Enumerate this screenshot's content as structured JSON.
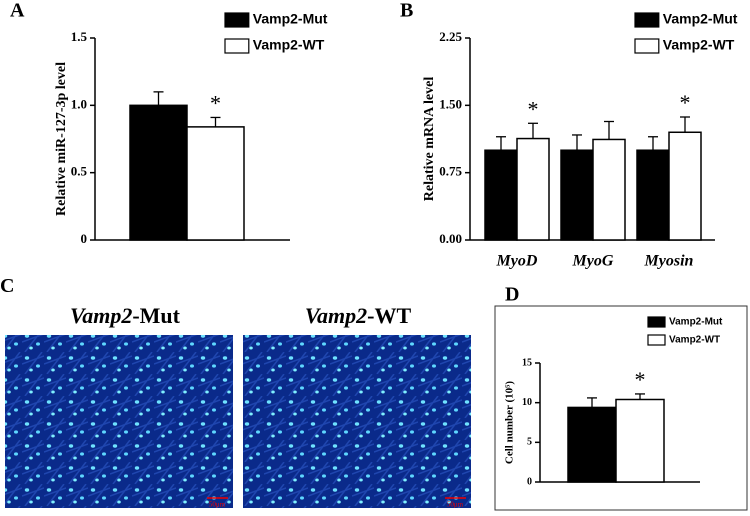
{
  "chart_data": [
    {
      "type": "bar",
      "panel": "A",
      "ylabel": "Relative miR-127-3p level",
      "categories": [
        null
      ],
      "series": [
        {
          "name": "Vamp2-Mut",
          "color": "#000000",
          "values": [
            1.0
          ],
          "errors": [
            0.1
          ]
        },
        {
          "name": "Vamp2-WT",
          "color": "#ffffff",
          "values": [
            0.84
          ],
          "errors": [
            0.07
          ]
        }
      ],
      "annotations": [
        {
          "text": "*",
          "series": 1,
          "index": 0
        }
      ],
      "ylim": [
        0,
        1.5
      ],
      "yticks": [
        0,
        0.5,
        {
          "value": 1,
          "label": "1.0"
        },
        1.5
      ]
    },
    {
      "type": "bar",
      "panel": "B",
      "ylabel": "Relative mRNA level",
      "categories": [
        "MyoD",
        "MyoG",
        "Myosin"
      ],
      "series": [
        {
          "name": "Vamp2-Mut",
          "color": "#000000",
          "values": [
            1.0,
            1.0,
            1.0
          ],
          "errors": [
            0.15,
            0.17,
            0.15
          ]
        },
        {
          "name": "Vamp2-WT",
          "color": "#ffffff",
          "values": [
            1.13,
            1.12,
            1.2
          ],
          "errors": [
            0.17,
            0.2,
            0.17
          ]
        }
      ],
      "annotations": [
        {
          "text": "*",
          "series": 1,
          "index": 0
        },
        {
          "text": "*",
          "series": 1,
          "index": 2
        }
      ],
      "ylim": [
        0,
        2.25
      ],
      "yticks": [
        {
          "value": 0,
          "label": "0.00"
        },
        {
          "value": 0.75,
          "label": "0.75"
        },
        {
          "value": 1.5,
          "label": "1.50"
        },
        {
          "value": 2.25,
          "label": "2.25"
        }
      ]
    },
    {
      "type": "bar",
      "panel": "D",
      "ylabel": "Cell number (10⁵)",
      "categories": [
        null
      ],
      "series": [
        {
          "name": "Vamp2-Mut",
          "color": "#000000",
          "values": [
            9.4
          ],
          "errors": [
            1.2
          ]
        },
        {
          "name": "Vamp2-WT",
          "color": "#ffffff",
          "values": [
            10.4
          ],
          "errors": [
            0.7
          ]
        }
      ],
      "annotations": [
        {
          "text": "*",
          "series": 1,
          "index": 0
        }
      ],
      "ylim": [
        0,
        15
      ],
      "yticks": [
        0,
        5,
        10,
        15
      ]
    }
  ],
  "images": {
    "panel": "C",
    "items": [
      {
        "gene": "Vamp2",
        "suffix": "-Mut",
        "scale": "50μm"
      },
      {
        "gene": "Vamp2",
        "suffix": "-WT",
        "scale": "50μm"
      }
    ]
  }
}
